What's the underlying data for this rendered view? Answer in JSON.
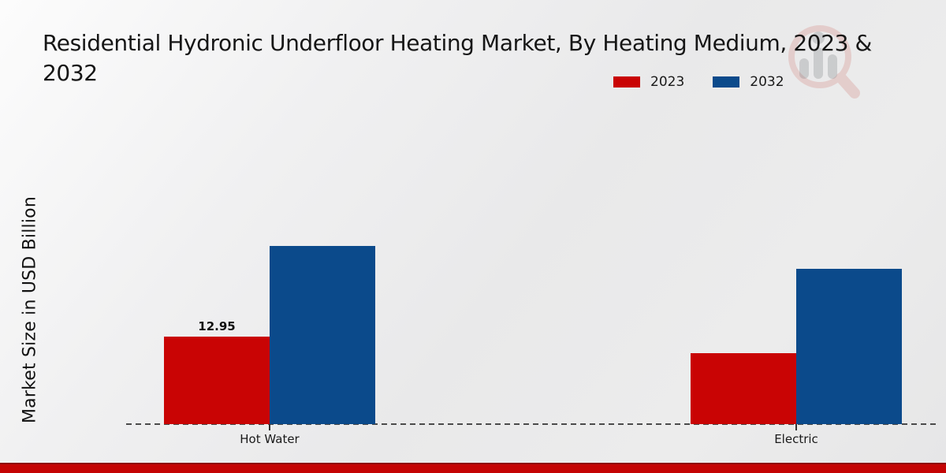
{
  "page": {
    "title_line1": "Residential Hydronic Underfloor Heating Market, By Heating Medium, 2023 &",
    "title_line2": "2032",
    "ylabel": "Market Size in USD Billion"
  },
  "legend": {
    "position": "top-right",
    "items": [
      {
        "label": "2023",
        "color": "#c90404"
      },
      {
        "label": "2032",
        "color": "#0b4a8b"
      }
    ]
  },
  "watermark": {
    "name": "magnifier-bar-chart-logo",
    "ring_color": "#c0392b",
    "bars_color": "#85878c"
  },
  "colors": {
    "series_2023": "#c90404",
    "series_2032": "#0b4a8b",
    "footer_bar": "#c40404",
    "baseline": "#4a4a4a",
    "text": "#161616"
  },
  "chart_data": {
    "type": "bar",
    "title": "Residential Hydronic Underfloor Heating Market, By Heating Medium, 2023 & 2032",
    "xlabel": "",
    "ylabel": "Market Size in USD Billion",
    "categories": [
      "Hot Water",
      "Electric"
    ],
    "series": [
      {
        "name": "2023",
        "color": "#c90404",
        "values": [
          12.95,
          10.5
        ],
        "data_labels": [
          "12.95",
          null
        ]
      },
      {
        "name": "2032",
        "color": "#0b4a8b",
        "values": [
          26.4,
          23.0
        ],
        "data_labels": [
          null,
          null
        ]
      }
    ],
    "ylim": [
      0,
      30
    ],
    "grid": false,
    "y_tick_labels_visible": false,
    "baseline_style": "dashed",
    "legend_position": "top-right"
  }
}
